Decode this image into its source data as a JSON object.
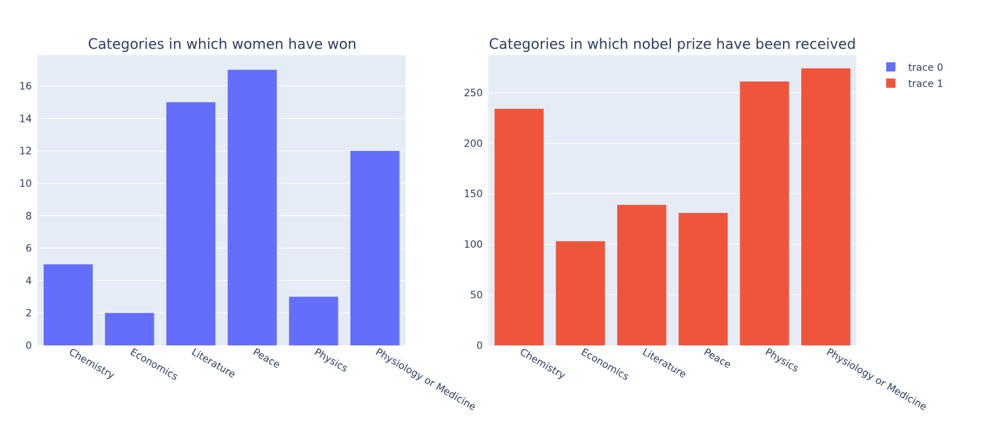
{
  "chart_data": [
    {
      "type": "bar",
      "title": "Categories in which women have won",
      "xlabel": "",
      "ylabel": "",
      "categories": [
        "Chemistry",
        "Economics",
        "Literature",
        "Peace",
        "Physics",
        "Physiology or Medicine"
      ],
      "series": [
        {
          "name": "trace 0",
          "color": "#636efa",
          "values": [
            5,
            2,
            15,
            17,
            3,
            12
          ]
        }
      ],
      "ylim": [
        0,
        17.9
      ],
      "yticks": [
        0,
        2,
        4,
        6,
        8,
        10,
        12,
        14,
        16
      ],
      "grid": true
    },
    {
      "type": "bar",
      "title": "Categories in which nobel prize have been received",
      "xlabel": "",
      "ylabel": "",
      "categories": [
        "Chemistry",
        "Economics",
        "Literature",
        "Peace",
        "Physics",
        "Physiology or Medicine"
      ],
      "series": [
        {
          "name": "trace 1",
          "color": "#ef553b",
          "values": [
            234,
            103,
            139,
            131,
            261,
            274
          ]
        }
      ],
      "ylim": [
        0,
        287
      ],
      "yticks": [
        0,
        50,
        100,
        150,
        200,
        250
      ],
      "grid": true
    }
  ],
  "legend": {
    "placement": "top-right",
    "items": [
      {
        "label": "trace 0",
        "color": "#636efa"
      },
      {
        "label": "trace 1",
        "color": "#ef553b"
      }
    ]
  },
  "colors": {
    "plot_background": "#e5ecf6",
    "gridline": "#ffffff",
    "text": "#2a3f5f"
  }
}
